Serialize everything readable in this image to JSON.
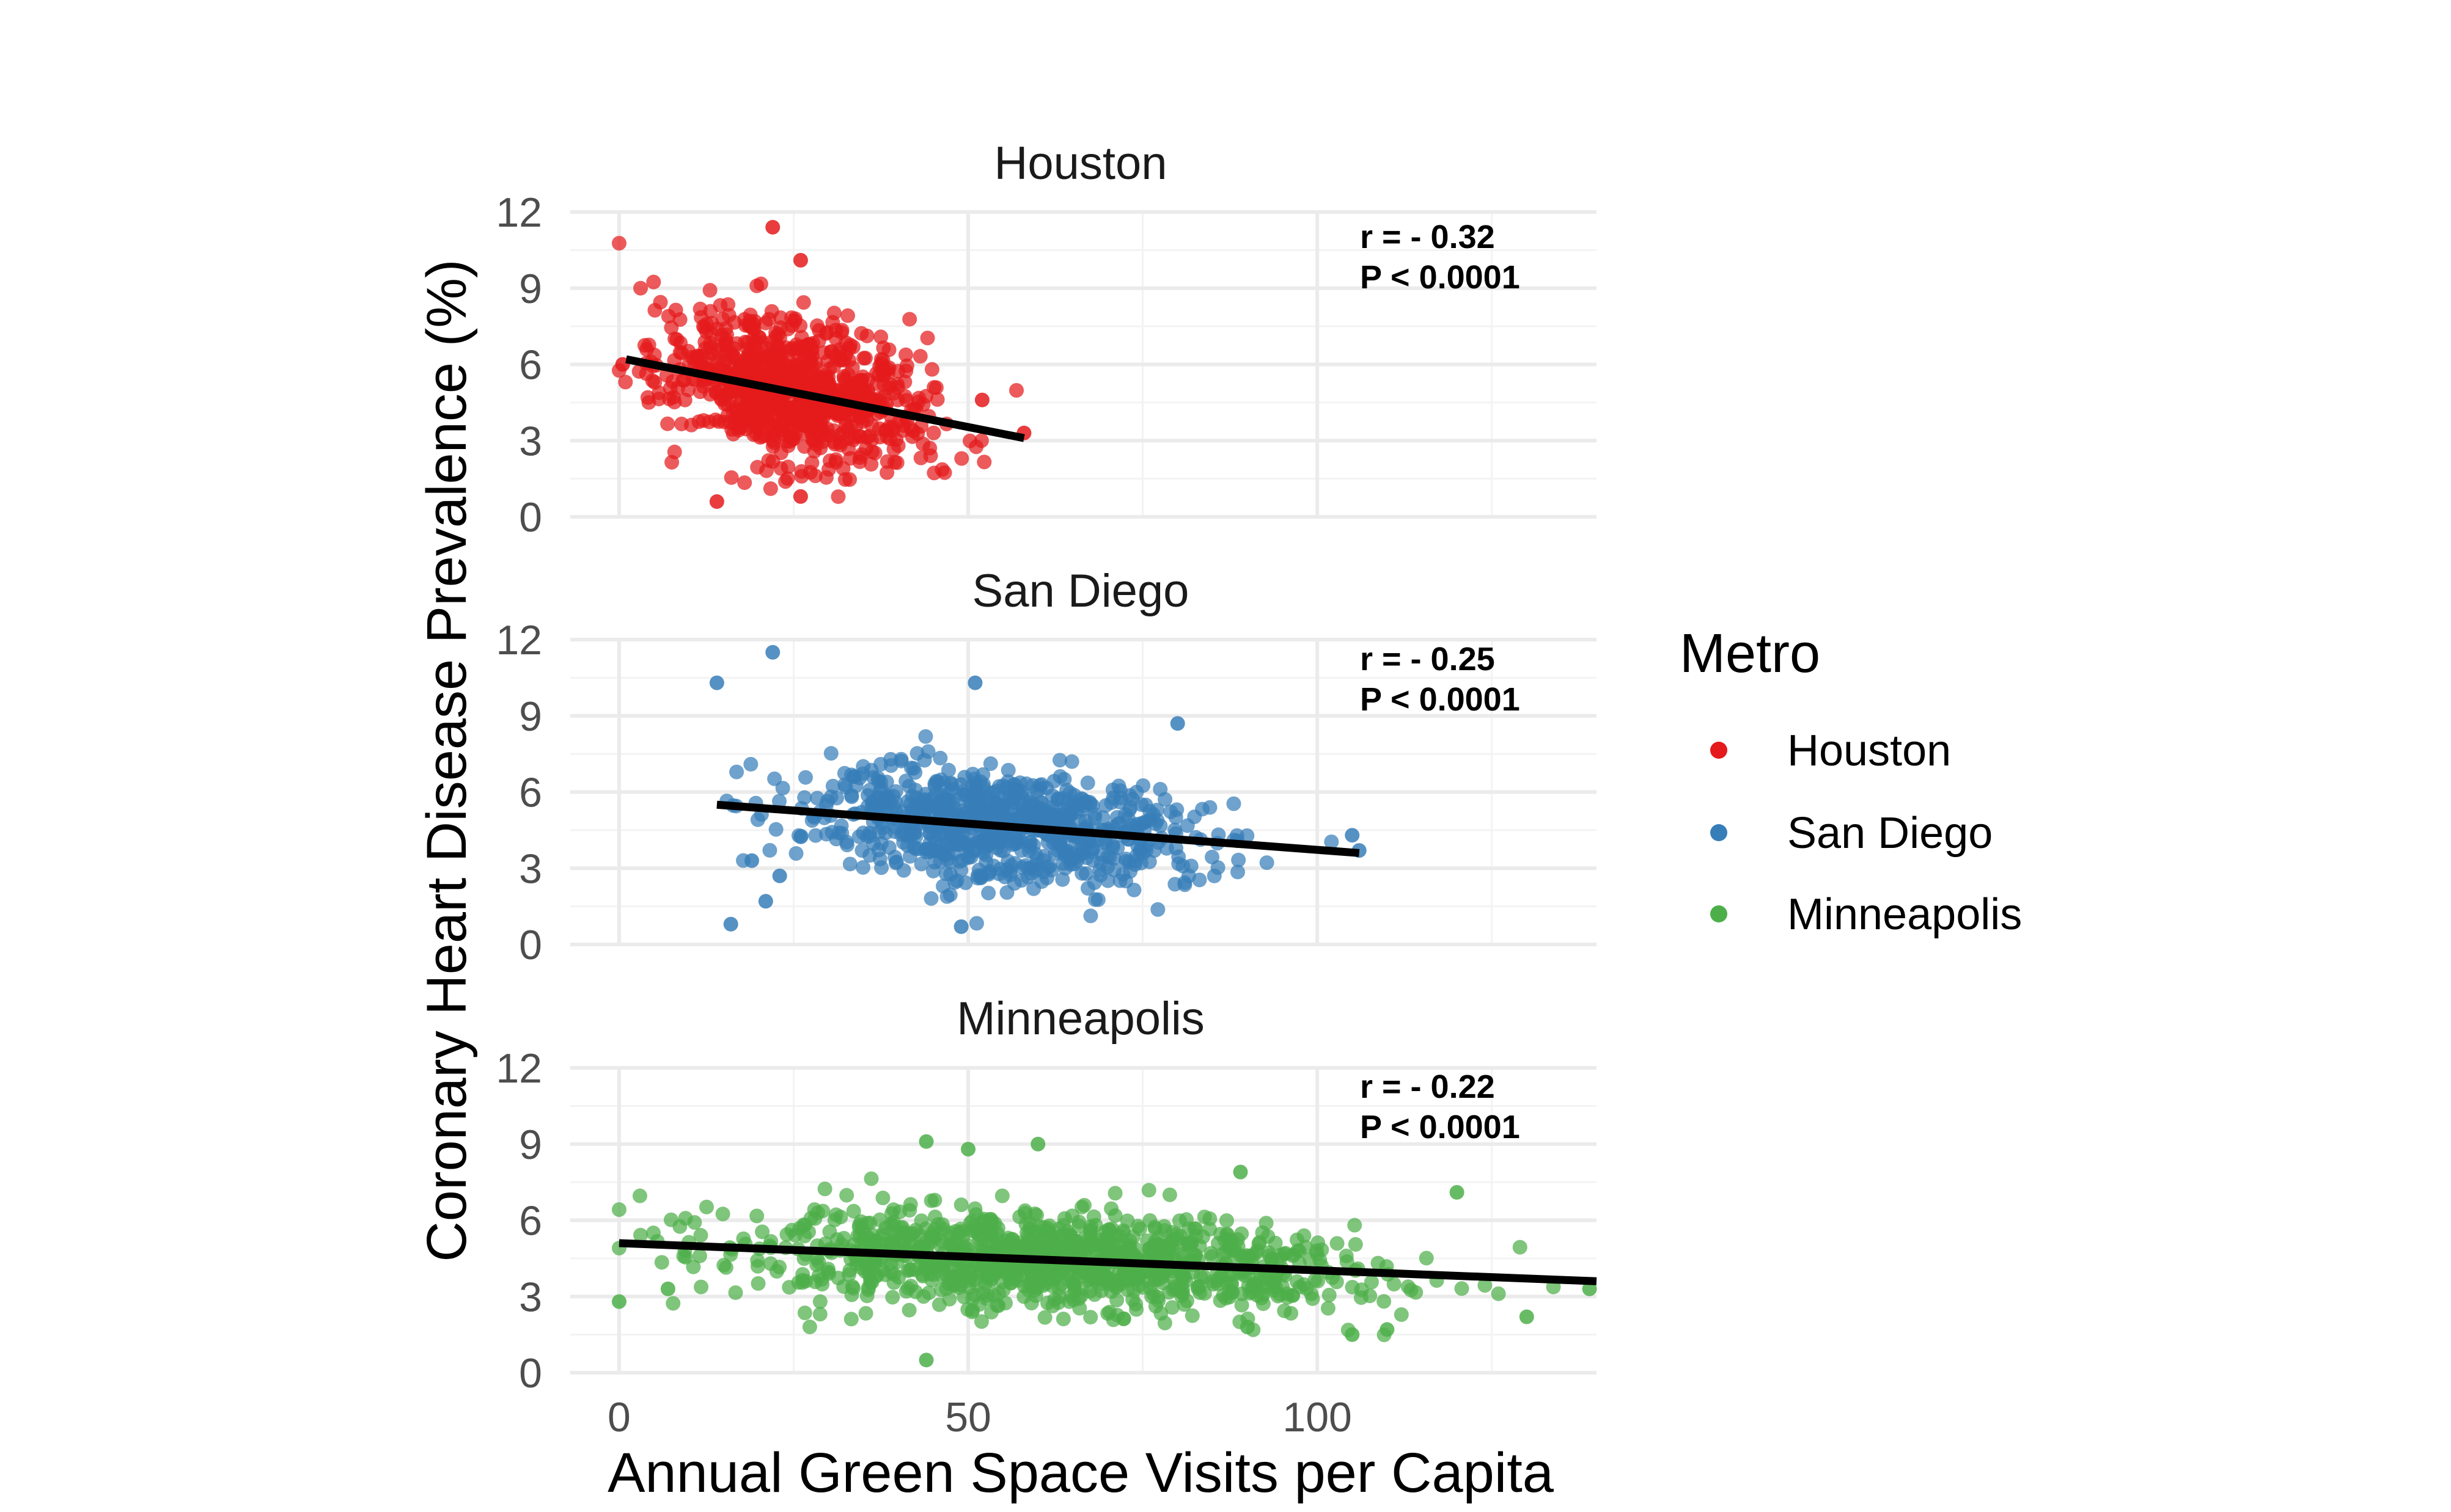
{
  "chart_data": {
    "type": "scatter",
    "facet_by": "Metro",
    "xlabel": "Annual Green Space Visits per Capita",
    "ylabel": "Coronary Heart Disease Prevalence (%)",
    "xlim": [
      -7,
      140
    ],
    "ylim": [
      0,
      12
    ],
    "x_ticks": [
      0,
      50,
      100
    ],
    "y_ticks": [
      0,
      3,
      6,
      9,
      12
    ],
    "grid": true,
    "legend": {
      "title": "Metro",
      "placement": "right",
      "entries": [
        {
          "label": "Houston",
          "color": "#E41A1C"
        },
        {
          "label": "San Diego",
          "color": "#377EB8"
        },
        {
          "label": "Minneapolis",
          "color": "#4DAF4A"
        }
      ]
    },
    "series": [
      {
        "name": "Houston",
        "color": "#E41A1C",
        "point_count": 900,
        "x_range": [
          0,
          58
        ],
        "x_center": 25,
        "x_spread": 9,
        "y_center": 5.1,
        "y_spread": 1.4,
        "r_text": "r = - 0.32",
        "p_text": "P < 0.0001",
        "trend": {
          "x_start": 1,
          "y_start": 6.2,
          "x_end": 58,
          "y_end": 3.1
        },
        "highlight_points": [
          [
            22,
            11.4
          ],
          [
            0.5,
            6.0
          ],
          [
            14,
            0.6
          ],
          [
            26,
            0.8
          ],
          [
            58,
            3.3
          ],
          [
            52,
            4.6
          ],
          [
            26,
            10.1
          ]
        ]
      },
      {
        "name": "San Diego",
        "color": "#377EB8",
        "point_count": 850,
        "x_range": [
          14,
          106
        ],
        "x_center": 55,
        "x_spread": 14,
        "y_center": 4.8,
        "y_spread": 1.1,
        "r_text": "r = - 0.25",
        "p_text": "P < 0.0001",
        "trend": {
          "x_start": 14,
          "y_start": 5.5,
          "x_end": 106,
          "y_end": 3.6
        },
        "highlight_points": [
          [
            22,
            11.5
          ],
          [
            14,
            10.3
          ],
          [
            51,
            10.3
          ],
          [
            16,
            0.8
          ],
          [
            21,
            1.7
          ],
          [
            49,
            0.7
          ],
          [
            80,
            8.7
          ],
          [
            105,
            4.3
          ],
          [
            106,
            3.7
          ],
          [
            19,
            3.3
          ],
          [
            23,
            2.7
          ]
        ]
      },
      {
        "name": "Minneapolis",
        "color": "#4DAF4A",
        "point_count": 1100,
        "x_range": [
          0,
          140
        ],
        "x_center": 62,
        "x_spread": 22,
        "y_center": 4.3,
        "y_spread": 0.95,
        "r_text": "r = - 0.22",
        "p_text": "P < 0.0001",
        "trend": {
          "x_start": 0,
          "y_start": 5.1,
          "x_end": 140,
          "y_end": 3.6
        },
        "highlight_points": [
          [
            0,
            2.8
          ],
          [
            7,
            3.3
          ],
          [
            44,
            0.5
          ],
          [
            44,
            9.1
          ],
          [
            60,
            9.0
          ],
          [
            50,
            8.8
          ],
          [
            89,
            7.9
          ],
          [
            120,
            7.1
          ],
          [
            130,
            2.2
          ],
          [
            139,
            3.3
          ],
          [
            105,
            1.5
          ],
          [
            110,
            1.7
          ],
          [
            90,
            1.8
          ]
        ]
      }
    ]
  }
}
